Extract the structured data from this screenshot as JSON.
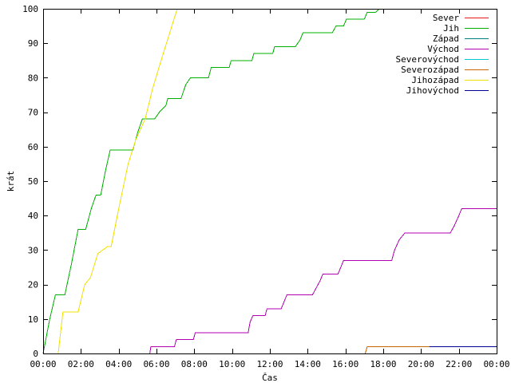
{
  "chart_data": {
    "type": "line",
    "xlabel": "Čas",
    "ylabel": "krát",
    "xlim": [
      0,
      24
    ],
    "ylim": [
      0,
      100
    ],
    "x_ticks": [
      {
        "value": 0,
        "label": "00:00"
      },
      {
        "value": 2,
        "label": "02:00"
      },
      {
        "value": 4,
        "label": "04:00"
      },
      {
        "value": 6,
        "label": "06:00"
      },
      {
        "value": 8,
        "label": "08:00"
      },
      {
        "value": 10,
        "label": "10:00"
      },
      {
        "value": 12,
        "label": "12:00"
      },
      {
        "value": 14,
        "label": "14:00"
      },
      {
        "value": 16,
        "label": "16:00"
      },
      {
        "value": 18,
        "label": "18:00"
      },
      {
        "value": 20,
        "label": "20:00"
      },
      {
        "value": 22,
        "label": "22:00"
      },
      {
        "value": 24,
        "label": "00:00"
      }
    ],
    "y_ticks": [
      {
        "value": 0,
        "label": "0"
      },
      {
        "value": 10,
        "label": "10"
      },
      {
        "value": 20,
        "label": "20"
      },
      {
        "value": 30,
        "label": "30"
      },
      {
        "value": 40,
        "label": "40"
      },
      {
        "value": 50,
        "label": "50"
      },
      {
        "value": 60,
        "label": "60"
      },
      {
        "value": 70,
        "label": "70"
      },
      {
        "value": 80,
        "label": "80"
      },
      {
        "value": 90,
        "label": "90"
      },
      {
        "value": 100,
        "label": "100"
      }
    ],
    "grid": false,
    "legend_position": "top-right",
    "series": [
      {
        "name": "Sever",
        "color": "#e41a1c",
        "points": []
      },
      {
        "name": "Jih",
        "color": "#00b000",
        "points": [
          [
            0.0,
            0
          ],
          [
            0.35,
            10
          ],
          [
            0.65,
            17
          ],
          [
            1.15,
            17
          ],
          [
            1.5,
            26
          ],
          [
            1.85,
            36
          ],
          [
            2.25,
            36
          ],
          [
            2.55,
            42
          ],
          [
            2.8,
            46
          ],
          [
            3.05,
            46
          ],
          [
            3.3,
            53
          ],
          [
            3.55,
            59
          ],
          [
            4.75,
            59
          ],
          [
            5.0,
            64
          ],
          [
            5.25,
            68
          ],
          [
            5.9,
            68
          ],
          [
            6.15,
            70
          ],
          [
            6.5,
            72
          ],
          [
            6.6,
            74
          ],
          [
            7.3,
            74
          ],
          [
            7.55,
            78
          ],
          [
            7.8,
            80
          ],
          [
            8.75,
            80
          ],
          [
            8.9,
            83
          ],
          [
            9.85,
            83
          ],
          [
            9.95,
            85
          ],
          [
            11.05,
            85
          ],
          [
            11.15,
            87
          ],
          [
            12.15,
            87
          ],
          [
            12.25,
            89
          ],
          [
            13.35,
            89
          ],
          [
            13.6,
            91
          ],
          [
            13.75,
            93
          ],
          [
            15.3,
            93
          ],
          [
            15.5,
            95
          ],
          [
            15.9,
            95
          ],
          [
            16.05,
            97
          ],
          [
            17.0,
            97
          ],
          [
            17.15,
            99
          ],
          [
            17.6,
            99
          ],
          [
            17.8,
            100
          ]
        ]
      },
      {
        "name": "Západ",
        "color": "#008080",
        "points": []
      },
      {
        "name": "Východ",
        "color": "#b000b0",
        "points": [
          [
            5.65,
            0
          ],
          [
            5.7,
            2
          ],
          [
            6.95,
            2
          ],
          [
            7.05,
            4
          ],
          [
            7.95,
            4
          ],
          [
            8.05,
            6
          ],
          [
            10.85,
            6
          ],
          [
            10.95,
            9
          ],
          [
            11.1,
            11
          ],
          [
            11.75,
            11
          ],
          [
            11.85,
            13
          ],
          [
            12.6,
            13
          ],
          [
            12.75,
            15
          ],
          [
            12.9,
            17
          ],
          [
            14.25,
            17
          ],
          [
            14.45,
            19
          ],
          [
            14.65,
            21
          ],
          [
            14.8,
            23
          ],
          [
            15.6,
            23
          ],
          [
            15.75,
            25
          ],
          [
            15.9,
            27
          ],
          [
            18.45,
            27
          ],
          [
            18.6,
            30
          ],
          [
            18.85,
            33
          ],
          [
            19.15,
            35
          ],
          [
            21.55,
            35
          ],
          [
            21.75,
            37
          ],
          [
            22.0,
            40
          ],
          [
            22.15,
            42
          ],
          [
            24.0,
            42
          ]
        ]
      },
      {
        "name": "Severovýchod",
        "color": "#00c8d7",
        "points": []
      },
      {
        "name": "Severozápad",
        "color": "#c86400",
        "points": [
          [
            17.05,
            0
          ],
          [
            17.15,
            2
          ],
          [
            24.0,
            2
          ]
        ]
      },
      {
        "name": "Jihozápad",
        "color": "#f0e000",
        "points": [
          [
            0.8,
            0
          ],
          [
            1.05,
            12
          ],
          [
            1.85,
            12
          ],
          [
            2.2,
            20
          ],
          [
            2.5,
            22
          ],
          [
            2.9,
            29
          ],
          [
            3.4,
            31
          ],
          [
            3.6,
            31
          ],
          [
            4.0,
            42
          ],
          [
            4.5,
            55
          ],
          [
            4.9,
            62
          ],
          [
            5.4,
            68
          ],
          [
            5.8,
            77
          ],
          [
            6.3,
            86
          ],
          [
            6.7,
            93
          ],
          [
            7.1,
            100
          ]
        ]
      },
      {
        "name": "Jihovýchod",
        "color": "#000090",
        "points": [
          [
            20.45,
            2
          ],
          [
            24.0,
            2
          ]
        ]
      }
    ]
  }
}
